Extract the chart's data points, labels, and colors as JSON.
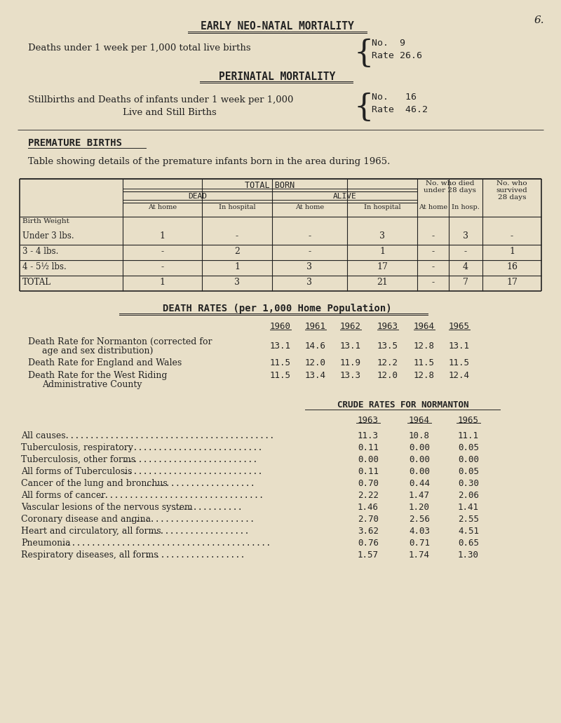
{
  "bg_color": "#e8dfc8",
  "text_color": "#222222",
  "page_number": "6.",
  "section1_title": "EARLY NEO-NATAL MORTALITY",
  "section1_line1": "Deaths under 1 week per 1,000 total live births",
  "section1_no": "No.  9",
  "section1_rate": "Rate 26.6",
  "section2_title": "PERINATAL MORTALITY",
  "section2_line1": "Stillbirths and Deaths of infants under 1 week per 1,000",
  "section2_line2": "Live and Still Births",
  "section2_no": "No.   16",
  "section2_rate": "Rate  46.2",
  "section3_title": "PREMATURE BIRTHS",
  "section3_subtitle": "Table showing details of the premature infants born in the area during 1965.",
  "table1_rows": [
    [
      "Under 3 lbs.",
      "1",
      "-",
      "-",
      "3",
      "-",
      "3",
      "-"
    ],
    [
      "3 - 4 lbs.",
      "-",
      "2",
      "-",
      "1",
      "-",
      "-",
      "1"
    ],
    [
      "4 - 5½ lbs.",
      "-",
      "1",
      "3",
      "17",
      "-",
      "4",
      "16"
    ],
    [
      "TOTAL",
      "1",
      "3",
      "3",
      "21",
      "-",
      "7",
      "17"
    ]
  ],
  "death_rate_years": [
    "1960",
    "1961",
    "1962",
    "1963",
    "1964",
    "1965"
  ],
  "death_rate_rows": [
    [
      "Death Rate for Normanton (corrected for",
      "age and sex distribution)",
      "13.1",
      "14.6",
      "13.1",
      "13.5",
      "12.8",
      "13.1"
    ],
    [
      "Death Rate for England and Wales",
      "",
      "11.5",
      "12.0",
      "11.9",
      "12.2",
      "11.5",
      "11.5"
    ],
    [
      "Death Rate for the West Riding",
      "Administrative County",
      "11.5",
      "13.4",
      "13.3",
      "12.0",
      "12.8",
      "12.4"
    ]
  ],
  "crude_title": "CRUDE RATES FOR NORMANTON",
  "crude_years": [
    "1963",
    "1964",
    "1965"
  ],
  "crude_rows": [
    [
      "All causes",
      "11.3",
      "10.8",
      "11.1"
    ],
    [
      "Tuberculosis, respiratory",
      "0.11",
      "0.00",
      "0.05"
    ],
    [
      "Tuberculosis, other forms",
      "0.00",
      "0.00",
      "0.00"
    ],
    [
      "All forms of Tuberculosis",
      "0.11",
      "0.00",
      "0.05"
    ],
    [
      "Cancer of the lung and bronchus",
      "0.70",
      "0.44",
      "0.30"
    ],
    [
      "All forms of cancer",
      "2.22",
      "1.47",
      "2.06"
    ],
    [
      "Vascular lesions of the nervous system",
      "1.46",
      "1.20",
      "1.41"
    ],
    [
      "Coronary disease and angina",
      "2.70",
      "2.56",
      "2.55"
    ],
    [
      "Heart and circulatory, all forms",
      "3.62",
      "4.03",
      "4.51"
    ],
    [
      "Pneumonia",
      "0.76",
      "0.71",
      "0.65"
    ],
    [
      "Respiratory diseases, all forms",
      "1.57",
      "1.74",
      "1.30"
    ]
  ],
  "dot_counts": [
    42,
    28,
    27,
    28,
    22,
    33,
    14,
    25,
    20,
    42,
    20
  ]
}
